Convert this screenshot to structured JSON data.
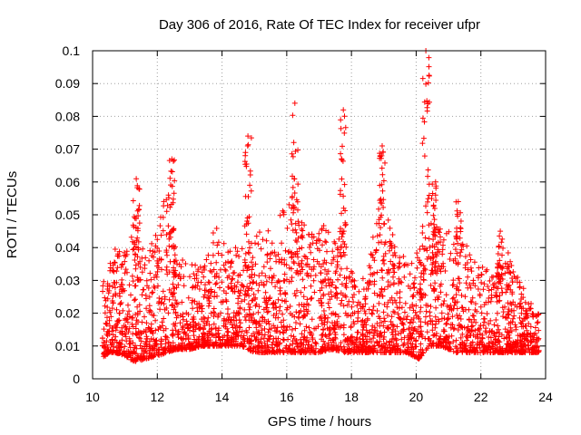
{
  "chart_data": {
    "type": "scatter",
    "title": "Day 306 of 2016, Rate Of TEC Index for receiver ufpr",
    "xlabel": "GPS time / hours",
    "ylabel": "ROTI / TECUs",
    "xlim": [
      10,
      24
    ],
    "ylim": [
      0,
      0.1
    ],
    "xticks": [
      10,
      12,
      14,
      16,
      18,
      20,
      22,
      24
    ],
    "yticks": [
      0,
      0.01,
      0.02,
      0.03,
      0.04,
      0.05,
      0.06,
      0.07,
      0.08,
      0.09,
      0.1
    ],
    "ytick_labels": [
      "0",
      "0.01",
      "0.02",
      "0.03",
      "0.04",
      "0.05",
      "0.06",
      "0.07",
      "0.08",
      "0.09",
      "0.1"
    ],
    "grid": true,
    "marker": "+",
    "series_color": "#ff0000",
    "envelope": {
      "hours": [
        10.3,
        10.5,
        10.7,
        11.0,
        11.3,
        11.6,
        12.0,
        12.3,
        12.6,
        13.0,
        13.4,
        13.8,
        14.2,
        14.6,
        15.0,
        15.4,
        15.8,
        16.2,
        16.6,
        17.0,
        17.4,
        17.8,
        18.1,
        18.5,
        18.9,
        19.3,
        19.7,
        20.1,
        20.4,
        20.8,
        21.2,
        21.6,
        22.0,
        22.4,
        22.8,
        23.2,
        23.6,
        23.8
      ],
      "low": [
        0.006,
        0.008,
        0.008,
        0.007,
        0.005,
        0.006,
        0.007,
        0.008,
        0.009,
        0.009,
        0.01,
        0.01,
        0.01,
        0.01,
        0.008,
        0.008,
        0.008,
        0.008,
        0.008,
        0.008,
        0.009,
        0.008,
        0.008,
        0.008,
        0.008,
        0.008,
        0.008,
        0.006,
        0.01,
        0.01,
        0.008,
        0.008,
        0.008,
        0.008,
        0.008,
        0.008,
        0.008,
        0.008
      ],
      "high": [
        0.03,
        0.035,
        0.04,
        0.04,
        0.05,
        0.04,
        0.045,
        0.06,
        0.04,
        0.035,
        0.035,
        0.048,
        0.04,
        0.04,
        0.045,
        0.045,
        0.05,
        0.06,
        0.045,
        0.045,
        0.05,
        0.045,
        0.03,
        0.035,
        0.055,
        0.045,
        0.035,
        0.04,
        0.06,
        0.045,
        0.045,
        0.04,
        0.035,
        0.035,
        0.04,
        0.03,
        0.022,
        0.02
      ]
    },
    "spikes": [
      {
        "hour": 11.35,
        "max": 0.061
      },
      {
        "hour": 12.45,
        "max": 0.067
      },
      {
        "hour": 14.8,
        "max": 0.074
      },
      {
        "hour": 16.25,
        "max": 0.084
      },
      {
        "hour": 17.75,
        "max": 0.082
      },
      {
        "hour": 18.95,
        "max": 0.071
      },
      {
        "hour": 20.3,
        "max": 0.1
      },
      {
        "hour": 20.6,
        "max": 0.06
      },
      {
        "hour": 21.3,
        "max": 0.054
      },
      {
        "hour": 22.6,
        "max": 0.045
      }
    ],
    "point_count": 3200
  }
}
